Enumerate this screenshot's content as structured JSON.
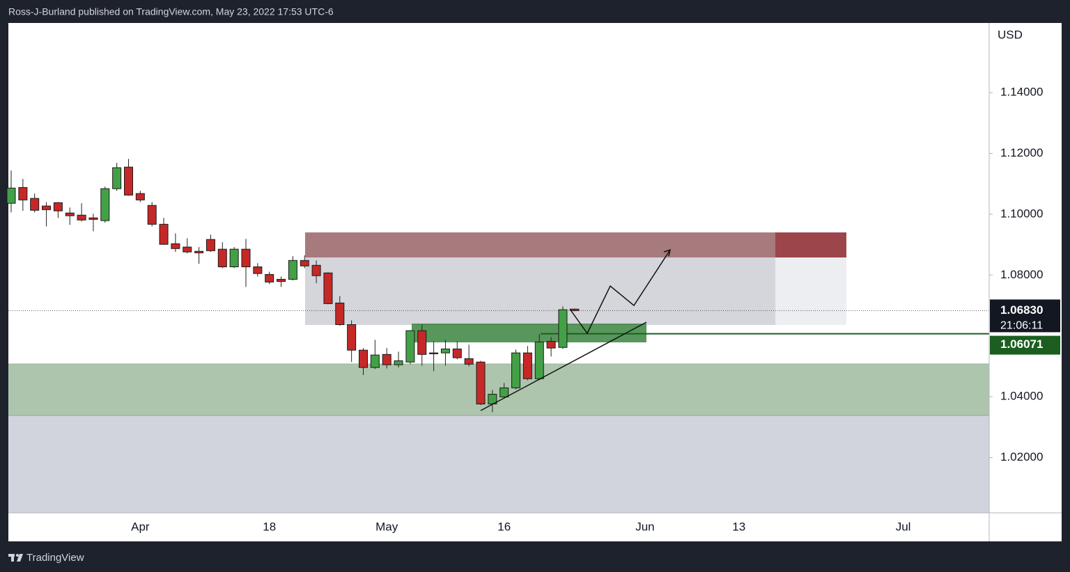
{
  "header": {
    "text": "Ross-J-Burland published on TradingView.com, May 23, 2022 17:53 UTC-6"
  },
  "chart_data": {
    "type": "candlestick",
    "currency": "USD",
    "categories": [
      null,
      null,
      null,
      null,
      null,
      null,
      null,
      null,
      null,
      null,
      null,
      "Apr",
      null,
      null,
      null,
      null,
      null,
      null,
      null,
      null,
      null,
      null,
      "18",
      null,
      null,
      null,
      null,
      null,
      null,
      null,
      null,
      null,
      "May",
      null,
      null,
      null,
      null,
      null,
      null,
      null,
      null,
      null,
      "16",
      null,
      null,
      null,
      null,
      null,
      null,
      null,
      null,
      null,
      null,
      null,
      "Jun",
      null,
      null,
      null,
      null,
      null,
      null,
      null,
      "13",
      null,
      null,
      null,
      null,
      null,
      null,
      null,
      null,
      null,
      null,
      null,
      null,
      null,
      "Jul",
      null,
      null,
      null,
      null,
      null,
      null,
      null
    ],
    "open": [
      1.1036,
      1.1088,
      1.1052,
      1.1027,
      1.1038,
      1.1004,
      1.0997,
      1.0988,
      1.0979,
      1.1084,
      1.1155,
      1.1068,
      1.1029,
      1.0967,
      1.0903,
      1.0892,
      1.0878,
      1.0917,
      1.0885,
      1.0827,
      1.0885,
      1.0827,
      1.0802,
      1.0786,
      1.0786,
      1.0848,
      1.0832,
      1.0807,
      1.0708,
      1.0637,
      1.0553,
      1.0496,
      1.0539,
      1.0505,
      1.0514,
      1.0617,
      1.0544,
      1.0544,
      1.0557,
      1.0525,
      1.0514,
      1.0376,
      1.0399,
      1.0429,
      1.0544,
      1.0459,
      1.0582,
      1.0562,
      1.0688,
      null,
      null,
      null,
      null,
      null,
      null,
      null,
      null,
      null,
      null,
      null,
      null,
      null,
      null,
      null,
      null,
      null,
      null,
      null,
      null,
      null,
      null,
      null,
      null,
      null,
      null,
      null,
      null,
      null,
      null,
      null,
      null,
      null,
      null,
      null
    ],
    "high": [
      1.1144,
      1.1116,
      1.1068,
      1.104,
      1.104,
      1.1022,
      1.1036,
      1.1002,
      1.1091,
      1.1169,
      1.1182,
      1.1077,
      1.104,
      1.0988,
      1.0937,
      1.0921,
      1.0892,
      1.0933,
      1.0908,
      1.0892,
      1.0919,
      1.0839,
      1.0811,
      1.0795,
      1.0862,
      1.0865,
      1.0848,
      1.0809,
      1.0731,
      1.0651,
      1.056,
      1.0587,
      1.056,
      1.0548,
      1.0619,
      1.0637,
      1.0582,
      1.0587,
      1.0582,
      1.0571,
      1.0518,
      1.0422,
      1.0445,
      1.0555,
      1.0567,
      1.0605,
      1.0596,
      1.0697,
      1.069,
      null,
      null,
      null,
      null,
      null,
      null,
      null,
      null,
      null,
      null,
      null,
      null,
      null,
      null,
      null,
      null,
      null,
      null,
      null,
      null,
      null,
      null,
      null,
      null,
      null,
      null,
      null,
      null,
      null,
      null,
      null,
      null,
      null,
      null,
      null
    ],
    "low": [
      1.1006,
      1.1011,
      1.1006,
      1.096,
      1.0988,
      1.0965,
      1.0976,
      1.0944,
      1.0972,
      1.1077,
      1.1061,
      1.104,
      1.096,
      1.0899,
      1.0876,
      1.0871,
      1.0837,
      1.0876,
      1.0823,
      1.0823,
      1.0761,
      1.0795,
      1.077,
      1.0761,
      1.0782,
      1.0823,
      1.0773,
      1.0704,
      1.0633,
      1.0514,
      1.0471,
      1.0491,
      1.0493,
      1.0496,
      1.0507,
      1.0502,
      1.0484,
      1.0502,
      1.0523,
      1.05,
      1.0372,
      1.0349,
      1.0395,
      1.0424,
      1.0454,
      1.0454,
      1.0532,
      1.0557,
      1.0681,
      null,
      null,
      null,
      null,
      null,
      null,
      null,
      null,
      null,
      null,
      null,
      null,
      null,
      null,
      null,
      null,
      null,
      null,
      null,
      null,
      null,
      null,
      null,
      null,
      null,
      null,
      null,
      null,
      null,
      null,
      null,
      null,
      null,
      null,
      null
    ],
    "close": [
      1.1086,
      1.1047,
      1.1013,
      1.1015,
      1.1011,
      1.0995,
      1.0981,
      1.0983,
      1.1084,
      1.1153,
      1.1063,
      1.1047,
      1.0967,
      1.0901,
      1.0887,
      1.0876,
      1.0873,
      1.088,
      1.0827,
      1.0885,
      1.0827,
      1.0805,
      1.0777,
      1.0779,
      1.0848,
      1.083,
      1.0798,
      1.0706,
      1.0637,
      1.0553,
      1.0496,
      1.0537,
      1.0505,
      1.0518,
      1.0617,
      1.0539,
      1.0541,
      1.0557,
      1.0528,
      1.0507,
      1.0376,
      1.0408,
      1.0429,
      1.0544,
      1.0459,
      1.058,
      1.056,
      1.0686,
      1.0683,
      null,
      null,
      null,
      null,
      null,
      null,
      null,
      null,
      null,
      null,
      null,
      null,
      null,
      null,
      null,
      null,
      null,
      null,
      null,
      null,
      null,
      null,
      null,
      null,
      null,
      null,
      null,
      null,
      null,
      null,
      null,
      null,
      null,
      null,
      null
    ],
    "up_color": "#43a047",
    "down_color": "#c62828",
    "ylim": [
      1.0018,
      1.1629
    ],
    "yticks": [
      {
        "value": 1.02,
        "label": "1.02000"
      },
      {
        "value": 1.04,
        "label": "1.04000"
      },
      {
        "value": 1.08,
        "label": "1.08000"
      },
      {
        "value": 1.1,
        "label": "1.10000"
      },
      {
        "value": 1.12,
        "label": "1.12000"
      },
      {
        "value": 1.14,
        "label": "1.14000"
      }
    ],
    "grid": false,
    "price_lines": [
      {
        "value": 1.0683,
        "label": "1.06830",
        "countdown": "21:06:11",
        "color": "#131722"
      },
      {
        "value": 1.06071,
        "label": "1.06071",
        "color": "#1b5e20"
      }
    ]
  },
  "footer": {
    "brand": "TradingView"
  }
}
